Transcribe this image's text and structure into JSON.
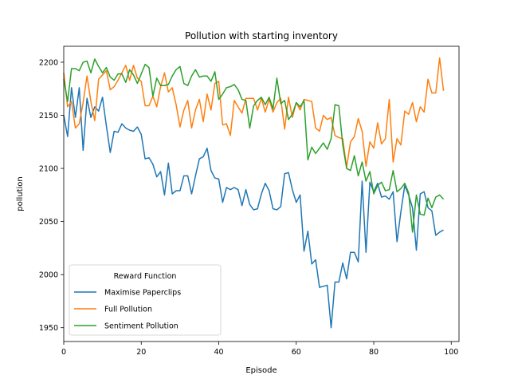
{
  "chart_data": {
    "type": "line",
    "title": "Pollution with starting inventory",
    "xlabel": "Episode",
    "ylabel": "pollution",
    "xlim": [
      0,
      102
    ],
    "ylim": [
      1937,
      2215
    ],
    "xticks": [
      0,
      20,
      40,
      60,
      80,
      100
    ],
    "yticks": [
      1950,
      2000,
      2050,
      2100,
      2150,
      2200
    ],
    "legend_title": "Reward Function",
    "legend_position": "lower-left",
    "series": [
      {
        "name": "Maximise Paperclips",
        "color": "#1f77b4",
        "values": [
          2150,
          2130,
          2176,
          2148,
          2176,
          2117,
          2166,
          2148,
          2158,
          2154,
          2167,
          2140,
          2115,
          2135,
          2134,
          2142,
          2138,
          2136,
          2135,
          2139,
          2132,
          2109,
          2110,
          2104,
          2092,
          2097,
          2075,
          2105,
          2076,
          2079,
          2079,
          2093,
          2093,
          2076,
          2093,
          2109,
          2111,
          2119,
          2098,
          2091,
          2090,
          2068,
          2082,
          2080,
          2082,
          2080,
          2065,
          2080,
          2066,
          2061,
          2062,
          2076,
          2086,
          2079,
          2062,
          2061,
          2064,
          2095,
          2096,
          2080,
          2068,
          2075,
          2022,
          2041,
          2010,
          2014,
          1988,
          1989,
          1990,
          1950,
          1993,
          1993,
          2011,
          1996,
          2021,
          2021,
          2012,
          2088,
          2021,
          2087,
          2078,
          2086,
          2073,
          2074,
          2071,
          2078,
          2031,
          2059,
          2084,
          2075,
          2063,
          2023,
          2076,
          2078,
          2063,
          2060,
          2037,
          2040,
          2042
        ]
      },
      {
        "name": "Full Pollution",
        "color": "#ff7f0e",
        "values": [
          2190,
          2158,
          2163,
          2138,
          2142,
          2162,
          2187,
          2163,
          2145,
          2184,
          2188,
          2192,
          2174,
          2177,
          2183,
          2190,
          2197,
          2183,
          2197,
          2185,
          2182,
          2159,
          2159,
          2168,
          2158,
          2177,
          2190,
          2172,
          2176,
          2160,
          2139,
          2155,
          2164,
          2138,
          2155,
          2165,
          2144,
          2170,
          2155,
          2180,
          2182,
          2141,
          2142,
          2131,
          2164,
          2158,
          2152,
          2166,
          2166,
          2166,
          2155,
          2166,
          2153,
          2165,
          2153,
          2162,
          2166,
          2137,
          2167,
          2148,
          2162,
          2155,
          2165,
          2164,
          2163,
          2138,
          2135,
          2150,
          2146,
          2148,
          2131,
          2129,
          2128,
          2101,
          2125,
          2130,
          2147,
          2135,
          2102,
          2125,
          2119,
          2143,
          2123,
          2128,
          2165,
          2106,
          2128,
          2122,
          2154,
          2151,
          2162,
          2144,
          2158,
          2153,
          2184,
          2171,
          2171,
          2204,
          2173
        ]
      },
      {
        "name": "Sentiment Pollution",
        "color": "#2ca02c",
        "values": [
          2184,
          2163,
          2194,
          2194,
          2192,
          2200,
          2201,
          2190,
          2203,
          2196,
          2190,
          2195,
          2186,
          2183,
          2189,
          2189,
          2181,
          2193,
          2188,
          2180,
          2189,
          2198,
          2195,
          2168,
          2185,
          2178,
          2178,
          2179,
          2187,
          2193,
          2196,
          2180,
          2178,
          2187,
          2193,
          2186,
          2187,
          2187,
          2182,
          2191,
          2165,
          2170,
          2176,
          2177,
          2179,
          2174,
          2165,
          2164,
          2138,
          2159,
          2164,
          2167,
          2160,
          2167,
          2156,
          2185,
          2161,
          2164,
          2146,
          2151,
          2162,
          2158,
          2164,
          2108,
          2120,
          2114,
          2119,
          2124,
          2118,
          2128,
          2160,
          2159,
          2122,
          2100,
          2098,
          2112,
          2093,
          2106,
          2088,
          2097,
          2076,
          2084,
          2087,
          2079,
          2080,
          2098,
          2078,
          2081,
          2086,
          2077,
          2040,
          2075,
          2057,
          2056,
          2072,
          2063,
          2073,
          2075,
          2071
        ]
      }
    ]
  }
}
